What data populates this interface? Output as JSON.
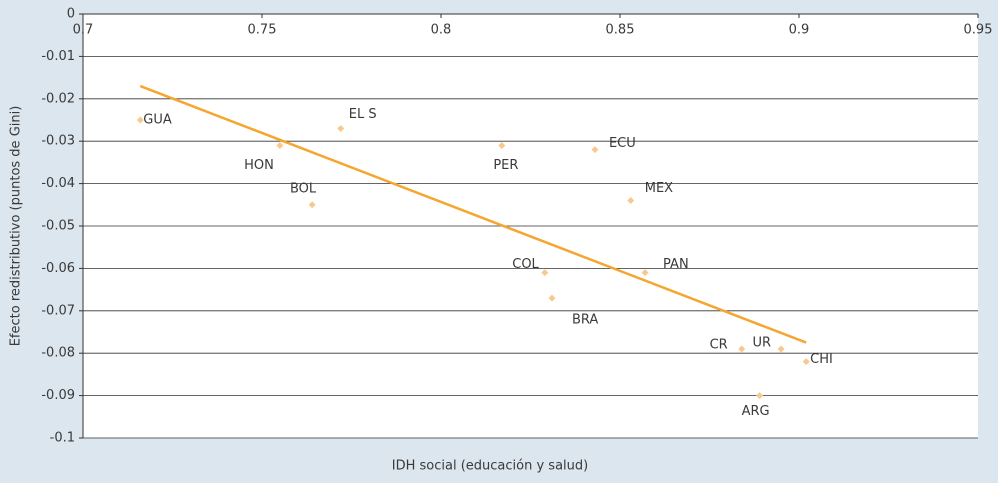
{
  "chart_data": {
    "type": "scatter",
    "xlabel": "IDH social (educación y salud)",
    "ylabel": "Efecto redistributivo (puntos de Gini)",
    "labels": [
      "GUA",
      "HON",
      "EL S",
      "BOL",
      "PER",
      "ECU",
      "MEX",
      "COL",
      "BRA",
      "PAN",
      "CR",
      "UR",
      "CHI",
      "ARG"
    ],
    "x": [
      0.716,
      0.755,
      0.772,
      0.764,
      0.817,
      0.843,
      0.853,
      0.829,
      0.831,
      0.857,
      0.884,
      0.895,
      0.902,
      0.889
    ],
    "values": [
      -0.025,
      -0.031,
      -0.027,
      -0.045,
      -0.031,
      -0.032,
      -0.044,
      -0.061,
      -0.067,
      -0.061,
      -0.079,
      -0.079,
      -0.082,
      -0.09
    ],
    "color": "#f8c98c",
    "trendline": {
      "x": [
        0.716,
        0.902
      ],
      "y": [
        -0.017,
        -0.0775
      ],
      "color": "#f5a630"
    },
    "xlim": [
      0.7,
      0.95
    ],
    "xticks": [
      0.7,
      0.75,
      0.8,
      0.85,
      0.9,
      0.95
    ],
    "ylim": [
      -0.1,
      0
    ],
    "yticks": [
      0,
      -0.01,
      -0.02,
      -0.03,
      -0.04,
      -0.05,
      -0.06,
      -0.07,
      -0.08,
      -0.09,
      -0.1
    ],
    "grid": true
  }
}
